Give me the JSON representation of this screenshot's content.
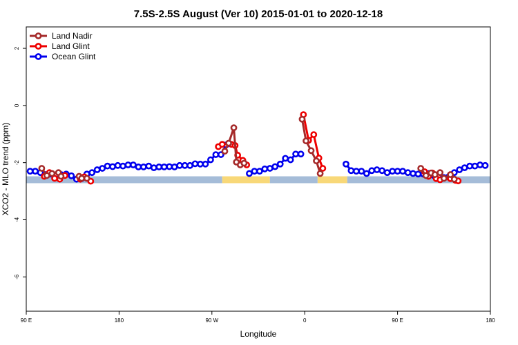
{
  "chart_data": {
    "type": "line",
    "title": "7.5S-2.5S August (Ver 10)   2015-01-01 to 2020-12-18",
    "xlabel": "Longitude",
    "ylabel": "XCO2 - MLO trend (ppm)",
    "xlim": [
      90,
      450
    ],
    "ylim": [
      -7.2,
      2.75
    ],
    "x_ticks": [
      {
        "value": 90,
        "label": "90 E"
      },
      {
        "value": 162,
        "label": "180"
      },
      {
        "value": 234,
        "label": "90 W"
      },
      {
        "value": 306,
        "label": "0"
      },
      {
        "value": 378,
        "label": "90 E"
      },
      {
        "value": 450,
        "label": "180"
      }
    ],
    "y_ticks": [
      {
        "value": 2,
        "label": "2"
      },
      {
        "value": 0,
        "label": "0"
      },
      {
        "value": -2,
        "label": "-2"
      },
      {
        "value": -4,
        "label": "-4"
      },
      {
        "value": -6,
        "label": "-6"
      }
    ],
    "surface_band": {
      "y": -2.6,
      "segments": [
        {
          "type": "ocean",
          "color": "#a5bcd8",
          "x0": 90,
          "x1": 242
        },
        {
          "type": "land",
          "color": "#f8d878",
          "x0": 242,
          "x1": 279
        },
        {
          "type": "ocean",
          "color": "#a5bcd8",
          "x0": 279,
          "x1": 316
        },
        {
          "type": "land",
          "color": "#f8d878",
          "x0": 316,
          "x1": 339
        },
        {
          "type": "ocean",
          "color": "#a5bcd8",
          "x0": 339,
          "x1": 450
        }
      ]
    },
    "series": [
      {
        "name": "Ocean Glint",
        "color": "#0000ee",
        "segments": [
          [
            [
              93,
              -2.3
            ],
            [
              97,
              -2.3
            ],
            [
              101,
              -2.35
            ],
            [
              105,
              -2.42
            ],
            [
              109,
              -2.4
            ],
            [
              113,
              -2.44
            ],
            [
              117,
              -2.42
            ],
            [
              121,
              -2.4
            ],
            [
              125,
              -2.46
            ],
            [
              129,
              -2.58
            ],
            [
              133,
              -2.56
            ],
            [
              137,
              -2.4
            ],
            [
              141,
              -2.35
            ],
            [
              145,
              -2.25
            ],
            [
              149,
              -2.2
            ],
            [
              153,
              -2.12
            ],
            [
              157,
              -2.14
            ],
            [
              161,
              -2.1
            ],
            [
              165,
              -2.12
            ],
            [
              169,
              -2.08
            ],
            [
              173,
              -2.08
            ],
            [
              177,
              -2.15
            ],
            [
              181,
              -2.15
            ],
            [
              185,
              -2.12
            ],
            [
              189,
              -2.18
            ],
            [
              193,
              -2.15
            ],
            [
              197,
              -2.15
            ],
            [
              201,
              -2.14
            ],
            [
              205,
              -2.15
            ],
            [
              209,
              -2.1
            ],
            [
              213,
              -2.1
            ],
            [
              217,
              -2.1
            ],
            [
              221,
              -2.04
            ],
            [
              225,
              -2.05
            ],
            [
              229,
              -2.05
            ],
            [
              233,
              -1.9
            ],
            [
              237,
              -1.72
            ],
            [
              241,
              -1.72
            ],
            [
              245,
              -1.38
            ]
          ],
          [
            [
              263,
              -2.38
            ],
            [
              267,
              -2.3
            ],
            [
              271,
              -2.3
            ],
            [
              275,
              -2.22
            ],
            [
              279,
              -2.2
            ],
            [
              283,
              -2.14
            ],
            [
              287,
              -2.05
            ],
            [
              291,
              -1.85
            ],
            [
              295,
              -1.9
            ],
            [
              299,
              -1.7
            ],
            [
              303,
              -1.7
            ]
          ],
          [
            [
              338,
              -2.05
            ],
            [
              342,
              -2.28
            ],
            [
              346,
              -2.3
            ],
            [
              350,
              -2.3
            ],
            [
              354,
              -2.38
            ],
            [
              358,
              -2.28
            ],
            [
              362,
              -2.25
            ],
            [
              366,
              -2.28
            ],
            [
              370,
              -2.35
            ],
            [
              374,
              -2.3
            ],
            [
              378,
              -2.3
            ],
            [
              382,
              -2.3
            ],
            [
              386,
              -2.35
            ],
            [
              390,
              -2.38
            ],
            [
              394,
              -2.4
            ],
            [
              398,
              -2.4
            ],
            [
              402,
              -2.38
            ],
            [
              406,
              -2.45
            ],
            [
              410,
              -2.45
            ],
            [
              414,
              -2.52
            ],
            [
              418,
              -2.48
            ],
            [
              422,
              -2.35
            ],
            [
              426,
              -2.25
            ],
            [
              430,
              -2.18
            ],
            [
              434,
              -2.12
            ],
            [
              438,
              -2.12
            ],
            [
              442,
              -2.08
            ],
            [
              446,
              -2.1
            ]
          ]
        ]
      },
      {
        "name": "Land Glint",
        "color": "#ee0000",
        "segments": [
          [
            [
              104,
              -2.48
            ],
            [
              108,
              -2.35
            ],
            [
              112,
              -2.55
            ],
            [
              116,
              -2.58
            ],
            [
              120,
              -2.45
            ]
          ],
          [
            [
              132,
              -2.58
            ],
            [
              135,
              -2.5
            ],
            [
              140,
              -2.65
            ]
          ],
          [
            [
              239,
              -1.44
            ],
            [
              242,
              -1.36
            ],
            [
              249,
              -1.36
            ],
            [
              252,
              -1.4
            ],
            [
              254,
              -1.74
            ],
            [
              258,
              -1.92
            ],
            [
              261,
              -2.08
            ]
          ],
          [
            [
              305,
              -0.32
            ],
            [
              309,
              -1.22
            ],
            [
              313,
              -1.02
            ],
            [
              317,
              -1.84
            ],
            [
              320,
              -2.2
            ]
          ],
          [
            [
              399,
              -2.32
            ],
            [
              402,
              -2.48
            ],
            [
              405,
              -2.36
            ],
            [
              408,
              -2.56
            ],
            [
              411,
              -2.6
            ],
            [
              419,
              -2.56
            ],
            [
              423,
              -2.62
            ],
            [
              425,
              -2.64
            ]
          ]
        ]
      },
      {
        "name": "Land Nadir",
        "color": "#a52a2a",
        "segments": [
          [
            [
              102,
              -2.2
            ],
            [
              106,
              -2.45
            ],
            [
              110,
              -2.38
            ],
            [
              115,
              -2.35
            ],
            [
              117,
              -2.48
            ]
          ],
          [
            [
              131,
              -2.48
            ],
            [
              133,
              -2.55
            ],
            [
              137,
              -2.55
            ]
          ],
          [
            [
              244,
              -1.6
            ],
            [
              247,
              -1.32
            ],
            [
              251,
              -0.78
            ],
            [
              253,
              -1.98
            ],
            [
              256,
              -2.08
            ],
            [
              259,
              -2.02
            ]
          ],
          [
            [
              304,
              -0.48
            ],
            [
              307,
              -1.24
            ],
            [
              311,
              -1.58
            ],
            [
              315,
              -1.94
            ],
            [
              318,
              -2.38
            ]
          ],
          [
            [
              396,
              -2.2
            ],
            [
              400,
              -2.45
            ],
            [
              404,
              -2.36
            ],
            [
              407,
              -2.42
            ],
            [
              411,
              -2.35
            ],
            [
              414,
              -2.55
            ],
            [
              419,
              -2.42
            ],
            [
              422,
              -2.58
            ]
          ]
        ]
      }
    ],
    "legend": {
      "position": "top-left",
      "entries": [
        {
          "name": "Land Nadir",
          "color": "#a52a2a"
        },
        {
          "name": "Land Glint",
          "color": "#ee0000"
        },
        {
          "name": "Ocean Glint",
          "color": "#0000ee"
        }
      ]
    }
  }
}
